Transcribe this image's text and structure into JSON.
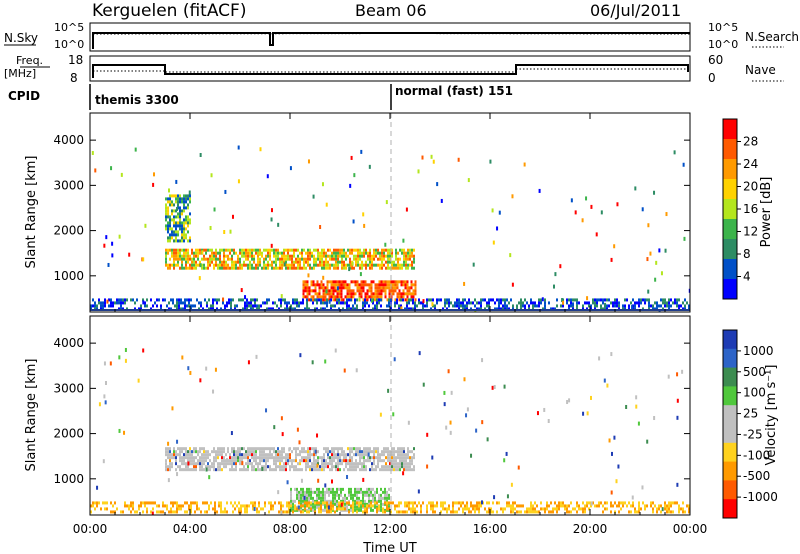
{
  "header": {
    "station": "Kerguelen  (fitACF)",
    "beam": "Beam 06",
    "date": "06/Jul/2011"
  },
  "panels": {
    "nsky_label": "N.Sky",
    "nsearch_label": "N.Search",
    "freq_label_1": "Freq.",
    "freq_label_2": "[MHz]",
    "nave_label": "Nave",
    "cpid_label": "CPID",
    "nsky_ticks": [
      "10^5",
      "10^0"
    ],
    "nsearch_ticks": [
      "10^5",
      "10^0"
    ],
    "freq_ticks": [
      "18",
      "8"
    ],
    "nave_ticks": [
      "60",
      "0"
    ]
  },
  "cpid": {
    "mode1": "themis 3300",
    "mode2": "normal (fast) 151",
    "change_hour": 12
  },
  "colors": {
    "frame": "#000000",
    "dashed_marker": "#b0b0b0",
    "ground_line": "#1f3c8c"
  },
  "chart_data": [
    {
      "type": "heatmap",
      "name_field": "power",
      "xlabel": "",
      "ylabel": "Slant Range [km]",
      "x_range_hours": [
        0,
        24
      ],
      "ylim": [
        200,
        4600
      ],
      "yticks": [
        1000,
        2000,
        3000,
        4000
      ],
      "ytick_labels": [
        "1000",
        "2000",
        "3000",
        "4000"
      ],
      "xticks": [
        0,
        4,
        8,
        12,
        16,
        20,
        24
      ],
      "xtick_labels": [
        "00:00",
        "04:00",
        "08:00",
        "12:00",
        "16:00",
        "20:00",
        "00:00"
      ],
      "colorbar": {
        "label": "Power [dB]",
        "ticks": [
          "28",
          "24",
          "20",
          "16",
          "12",
          "8",
          "4"
        ],
        "colors": [
          "#ff0000",
          "#ff5a00",
          "#ff9a00",
          "#ffd200",
          "#b4e61e",
          "#3cb44b",
          "#2d8c64",
          "#0050c8",
          "#0000ff"
        ]
      },
      "regions": [
        {
          "x": [
            3.0,
            13.0
          ],
          "y": [
            1200,
            1600
          ],
          "level": "mid-high"
        },
        {
          "x": [
            8.5,
            13.0
          ],
          "y": [
            500,
            900
          ],
          "level": "high"
        },
        {
          "x": [
            3.0,
            4.0
          ],
          "y": [
            1800,
            2800
          ],
          "level": "mid"
        },
        {
          "x": [
            0.0,
            24.0
          ],
          "y": [
            250,
            500
          ],
          "level": "low"
        }
      ]
    },
    {
      "type": "heatmap",
      "name_field": "velocity",
      "xlabel": "Time UT",
      "ylabel": "Slant Range [km]",
      "x_range_hours": [
        0,
        24
      ],
      "ylim": [
        200,
        4600
      ],
      "yticks": [
        1000,
        2000,
        3000,
        4000
      ],
      "ytick_labels": [
        "1000",
        "2000",
        "3000",
        "4000"
      ],
      "xticks": [
        0,
        4,
        8,
        12,
        16,
        20,
        24
      ],
      "xtick_labels": [
        "00:00",
        "04:00",
        "08:00",
        "12:00",
        "16:00",
        "20:00",
        "00:00"
      ],
      "colorbar": {
        "label": "Velocity [m s⁻¹]",
        "ticks": [
          "1000",
          "500",
          "100",
          "25",
          "-25",
          "-100",
          "-500",
          "-1000"
        ],
        "colors": [
          "#1e3cb4",
          "#2d64c8",
          "#3c8c50",
          "#50c83c",
          "#c0c0c0",
          "#c0c0c0",
          "#ffd21e",
          "#ff9a00",
          "#ff5a00",
          "#ff0000"
        ]
      },
      "regions": [
        {
          "x": [
            3.0,
            13.0
          ],
          "y": [
            1200,
            1700
          ],
          "level": "near-zero"
        },
        {
          "x": [
            8.0,
            12.0
          ],
          "y": [
            300,
            800
          ],
          "level": "green"
        },
        {
          "x": [
            0.0,
            24.0
          ],
          "y": [
            250,
            500
          ],
          "level": "orange"
        }
      ]
    }
  ]
}
